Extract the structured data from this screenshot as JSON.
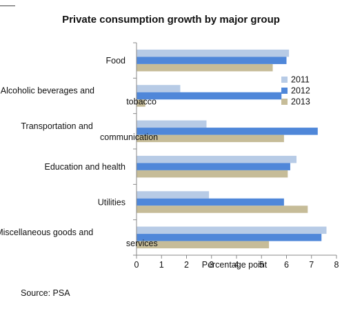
{
  "chart_data": {
    "type": "bar",
    "orientation": "horizontal",
    "title": "Private consumption growth by major group",
    "xlabel": "Percentage point",
    "ylabel": "",
    "xlim": [
      0,
      8
    ],
    "xticks": [
      0,
      1,
      2,
      3,
      4,
      5,
      6,
      7,
      8
    ],
    "grid": false,
    "legend_position": "right",
    "categories": [
      [
        "Food"
      ],
      [
        "Alcoholic beverages and",
        "tobacco"
      ],
      [
        "Transportation and",
        "communication"
      ],
      [
        "Education and health"
      ],
      [
        "Utilities"
      ],
      [
        "Miscellaneous goods and",
        "services"
      ]
    ],
    "series": [
      {
        "name": "2011",
        "color": "#b7cbe6",
        "values": [
          6.1,
          1.75,
          2.8,
          6.4,
          2.9,
          7.6
        ]
      },
      {
        "name": "2012",
        "color": "#4f87d9",
        "values": [
          6.0,
          5.8,
          7.25,
          6.15,
          5.9,
          7.4
        ]
      },
      {
        "name": "2013",
        "color": "#c6bc98",
        "values": [
          5.45,
          0.35,
          5.9,
          6.05,
          6.85,
          5.3
        ]
      }
    ]
  },
  "source": "Source: PSA"
}
